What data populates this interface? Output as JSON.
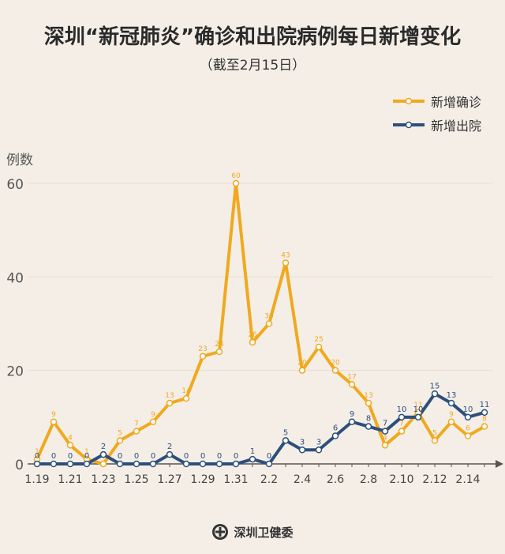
{
  "title": "深圳“新冠肺炎”确诊和出院病例每日新增变化",
  "subtitle": "（截至2月15日）",
  "footer": "深圳卫健委",
  "chart_data": {
    "type": "line",
    "ylabel": "例数",
    "ylim": [
      0,
      65
    ],
    "yticks": [
      0,
      20,
      40,
      60
    ],
    "grid": true,
    "legend": "top-right",
    "x": [
      "1.19",
      "1.20",
      "1.21",
      "1.22",
      "1.23",
      "1.24",
      "1.25",
      "1.26",
      "1.27",
      "1.28",
      "1.29",
      "1.30",
      "1.31",
      "2.1",
      "2.2",
      "2.3",
      "2.4",
      "2.5",
      "2.6",
      "2.7",
      "2.8",
      "2.9",
      "2.10",
      "2.11",
      "2.12",
      "2.13",
      "2.14",
      "2.15"
    ],
    "xticklabels": [
      "1.19",
      "1.21",
      "1.23",
      "1.25",
      "1.27",
      "1.29",
      "1.31",
      "2.2",
      "2.4",
      "2.6",
      "2.8",
      "2.10",
      "2.12",
      "2.14"
    ],
    "series": [
      {
        "name": "新增确诊",
        "color": "#f0a91f",
        "values": [
          1,
          9,
          4,
          1,
          0,
          5,
          7,
          9,
          13,
          14,
          23,
          24,
          60,
          26,
          30,
          43,
          20,
          25,
          20,
          17,
          13,
          4,
          7,
          11,
          5,
          9,
          6,
          8
        ]
      },
      {
        "name": "新增出院",
        "color": "#2d4f7c",
        "values": [
          0,
          0,
          0,
          0,
          2,
          0,
          0,
          0,
          2,
          0,
          0,
          0,
          0,
          1,
          0,
          5,
          3,
          3,
          6,
          9,
          8,
          7,
          10,
          10,
          15,
          13,
          10,
          11
        ]
      }
    ]
  }
}
